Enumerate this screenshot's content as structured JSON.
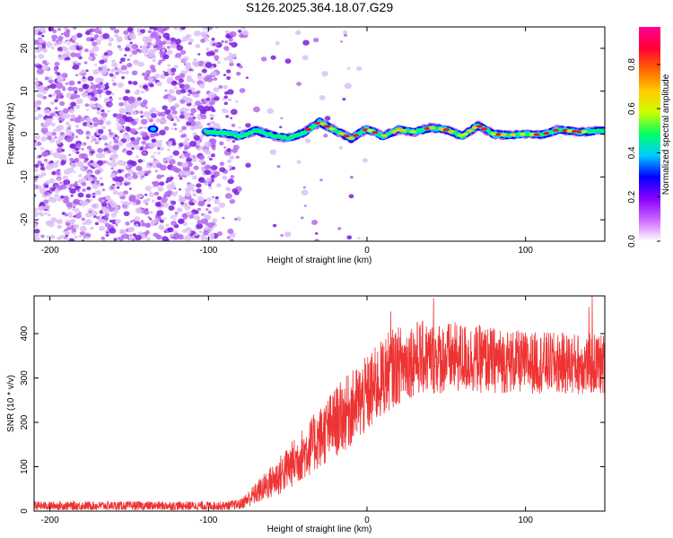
{
  "chart_data": [
    {
      "type": "heatmap",
      "title": "S126.2025.364.18.07.G29",
      "xlabel": "Height of straight line (km)",
      "ylabel": "Frequency (Hz)",
      "xlim": [
        -210,
        150
      ],
      "ylim": [
        -25,
        25
      ],
      "x_ticks": [
        -200,
        -100,
        0,
        100
      ],
      "y_ticks": [
        -20,
        -10,
        0,
        10,
        20
      ],
      "colorbar": {
        "label": "Normalized spectral amplitude",
        "range": [
          0,
          0.97
        ],
        "ticks": [
          0.0,
          0.2,
          0.4,
          0.6,
          0.8
        ],
        "colors": [
          "#ffffff",
          "#cc66ff",
          "#8800ff",
          "#0000ff",
          "#00ccff",
          "#00ff66",
          "#ccff00",
          "#ffcc00",
          "#ff6600",
          "#ff0033",
          "#ff0099"
        ]
      },
      "noise_region_x": [
        -210,
        -80
      ],
      "signal_track": [
        {
          "x": -135,
          "y": 1.2
        },
        {
          "x": -100,
          "y": 0.5
        },
        {
          "x": -90,
          "y": 0.2
        },
        {
          "x": -80,
          "y": -0.5
        },
        {
          "x": -70,
          "y": 0.8
        },
        {
          "x": -60,
          "y": -0.3
        },
        {
          "x": -50,
          "y": -1.0
        },
        {
          "x": -40,
          "y": 0.3
        },
        {
          "x": -30,
          "y": 2.8
        },
        {
          "x": -20,
          "y": 0.8
        },
        {
          "x": -10,
          "y": -1.0
        },
        {
          "x": 0,
          "y": 1.2
        },
        {
          "x": 10,
          "y": -0.5
        },
        {
          "x": 20,
          "y": 1.0
        },
        {
          "x": 30,
          "y": 0.5
        },
        {
          "x": 40,
          "y": 1.5
        },
        {
          "x": 50,
          "y": 1.0
        },
        {
          "x": 60,
          "y": -0.5
        },
        {
          "x": 70,
          "y": 2.0
        },
        {
          "x": 80,
          "y": 0.0
        },
        {
          "x": 90,
          "y": -0.3
        },
        {
          "x": 100,
          "y": 0.0
        },
        {
          "x": 110,
          "y": -0.2
        },
        {
          "x": 120,
          "y": 1.0
        },
        {
          "x": 135,
          "y": 0.5
        },
        {
          "x": 150,
          "y": 0.8
        }
      ]
    },
    {
      "type": "line",
      "title": "",
      "xlabel": "Height of straight line (km)",
      "ylabel": "SNR (10 * v/v)",
      "xlim": [
        -210,
        150
      ],
      "ylim": [
        0,
        485
      ],
      "x_ticks": [
        -200,
        -100,
        0,
        100
      ],
      "y_ticks": [
        0,
        100,
        200,
        300,
        400
      ],
      "color": "#ee3333",
      "envelope": [
        {
          "x": -210,
          "mean": 12,
          "amp": 10
        },
        {
          "x": -90,
          "mean": 12,
          "amp": 10
        },
        {
          "x": -80,
          "mean": 15,
          "amp": 12
        },
        {
          "x": -70,
          "mean": 40,
          "amp": 25
        },
        {
          "x": -55,
          "mean": 80,
          "amp": 45
        },
        {
          "x": -40,
          "mean": 130,
          "amp": 60
        },
        {
          "x": -20,
          "mean": 200,
          "amp": 80
        },
        {
          "x": 0,
          "mean": 260,
          "amp": 90
        },
        {
          "x": 15,
          "mean": 320,
          "amp": 90
        },
        {
          "x": 30,
          "mean": 345,
          "amp": 85
        },
        {
          "x": 60,
          "mean": 345,
          "amp": 80
        },
        {
          "x": 100,
          "mean": 335,
          "amp": 70
        },
        {
          "x": 150,
          "mean": 330,
          "amp": 70
        }
      ],
      "spikes": [
        {
          "x": 15,
          "y": 450
        },
        {
          "x": 42,
          "y": 480
        },
        {
          "x": 142,
          "y": 485
        },
        {
          "x": 140,
          "y": 460
        }
      ]
    }
  ]
}
